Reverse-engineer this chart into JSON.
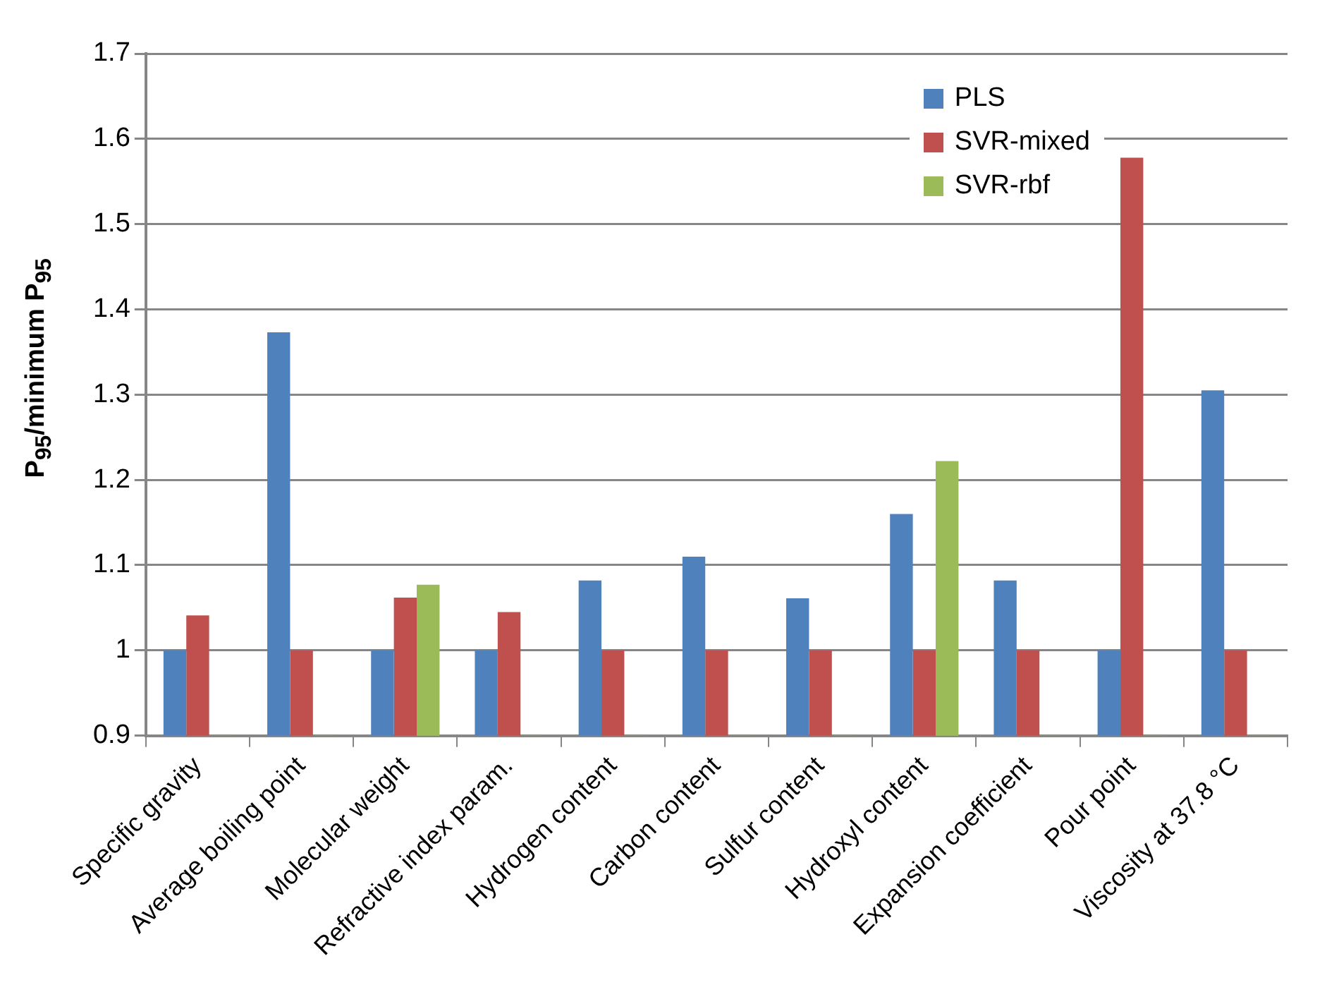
{
  "chart_data": {
    "type": "bar",
    "ylabel": "P$_{95}$/minimum P$_{95}$",
    "categories": [
      "Specific gravity",
      "Average boiling point",
      "Molecular weight",
      "Refractive index param.",
      "Hydrogen content",
      "Carbon content",
      "Sulfur content",
      "Hydroxyl content",
      "Expansion coefficient",
      "Pour point",
      "Viscosity at 37.8 °C"
    ],
    "series": [
      {
        "name": "PLS",
        "color": "#4f81bd",
        "values": [
          1,
          1.373,
          1,
          1,
          1.082,
          1.11,
          1.061,
          1.16,
          1.082,
          1,
          1.305
        ]
      },
      {
        "name": "SVR-mixed",
        "color": "#c0504d",
        "values": [
          1.041,
          1,
          1.062,
          1.045,
          1,
          1,
          1,
          1,
          1,
          1.578,
          1
        ]
      },
      {
        "name": "SVR-rbf",
        "color": "#9bbb59",
        "values": [
          0.9,
          0.9,
          1.077,
          0.9,
          0.9,
          0.9,
          0.9,
          1.222,
          0.9,
          0.9,
          0.9
        ]
      }
    ],
    "ylim": [
      0.9,
      1.7
    ],
    "yticks": [
      0.9,
      1,
      1.1,
      1.2,
      1.3,
      1.4,
      1.5,
      1.6,
      1.7
    ],
    "grid": "y",
    "legend": "top right"
  }
}
